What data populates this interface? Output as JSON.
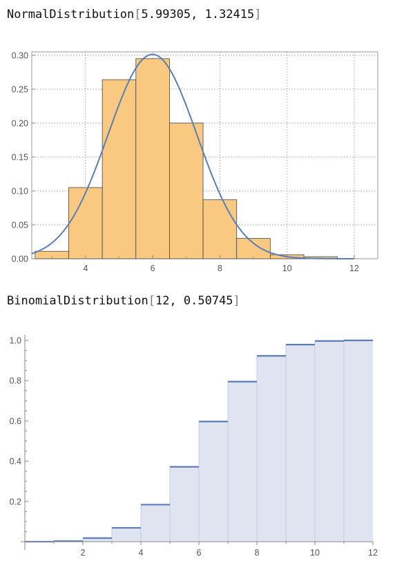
{
  "charts": [
    {
      "label_name": "NormalDistribution",
      "label_args": "5.99305, 1.32415"
    },
    {
      "label_name": "BinomialDistribution",
      "label_args": "12, 0.50745"
    }
  ],
  "chart_data": [
    {
      "type": "bar",
      "subtype": "histogram-with-pdf",
      "title": "",
      "xlabel": "",
      "ylabel": "",
      "xlim": [
        2.4,
        12.7
      ],
      "ylim": [
        0,
        0.305
      ],
      "grid": true,
      "x_ticks": [
        4,
        6,
        8,
        10,
        12
      ],
      "y_ticks": [
        0.0,
        0.05,
        0.1,
        0.15,
        0.2,
        0.25,
        0.3
      ],
      "y_tick_labels": [
        "0.00",
        "0.05",
        "0.10",
        "0.15",
        "0.20",
        "0.25",
        "0.30"
      ],
      "bins": [
        {
          "from": 2.5,
          "to": 3.5,
          "value": 0.011
        },
        {
          "from": 3.5,
          "to": 4.5,
          "value": 0.105
        },
        {
          "from": 4.5,
          "to": 5.5,
          "value": 0.264
        },
        {
          "from": 5.5,
          "to": 6.5,
          "value": 0.295
        },
        {
          "from": 6.5,
          "to": 7.5,
          "value": 0.2
        },
        {
          "from": 7.5,
          "to": 8.5,
          "value": 0.087
        },
        {
          "from": 8.5,
          "to": 9.5,
          "value": 0.03
        },
        {
          "from": 9.5,
          "to": 10.5,
          "value": 0.006
        },
        {
          "from": 10.5,
          "to": 11.5,
          "value": 0.003
        }
      ],
      "pdf": {
        "mean": 5.99305,
        "sd": 1.32415
      },
      "colors": {
        "bar": "#f9c982",
        "bar_edge": "#444444",
        "curve": "#5b7db5",
        "grid": "#b3b3b3"
      }
    },
    {
      "type": "area",
      "subtype": "step-cdf",
      "title": "",
      "xlabel": "",
      "ylabel": "",
      "xlim": [
        0,
        12
      ],
      "ylim": [
        0,
        1.0
      ],
      "grid": false,
      "x_ticks": [
        2,
        4,
        6,
        8,
        10,
        12
      ],
      "y_ticks": [
        0.2,
        0.4,
        0.6,
        0.8,
        1.0
      ],
      "y_tick_labels": [
        "0.2",
        "0.4",
        "0.6",
        "0.8",
        "1.0"
      ],
      "n": 12,
      "p": 0.50745,
      "steps": [
        {
          "from": 0,
          "to": 1,
          "value": 0.0002
        },
        {
          "from": 1,
          "to": 2,
          "value": 0.003
        },
        {
          "from": 2,
          "to": 3,
          "value": 0.018
        },
        {
          "from": 3,
          "to": 4,
          "value": 0.069
        },
        {
          "from": 4,
          "to": 5,
          "value": 0.184
        },
        {
          "from": 5,
          "to": 6,
          "value": 0.372
        },
        {
          "from": 6,
          "to": 7,
          "value": 0.597
        },
        {
          "from": 7,
          "to": 8,
          "value": 0.795
        },
        {
          "from": 8,
          "to": 9,
          "value": 0.923
        },
        {
          "from": 9,
          "to": 10,
          "value": 0.979
        },
        {
          "from": 10,
          "to": 11,
          "value": 0.997
        },
        {
          "from": 11,
          "to": 12,
          "value": 1.0
        }
      ],
      "colors": {
        "fill": "#dfe4f0",
        "step": "#5b7db5",
        "divider": "#c5cde0"
      }
    }
  ]
}
